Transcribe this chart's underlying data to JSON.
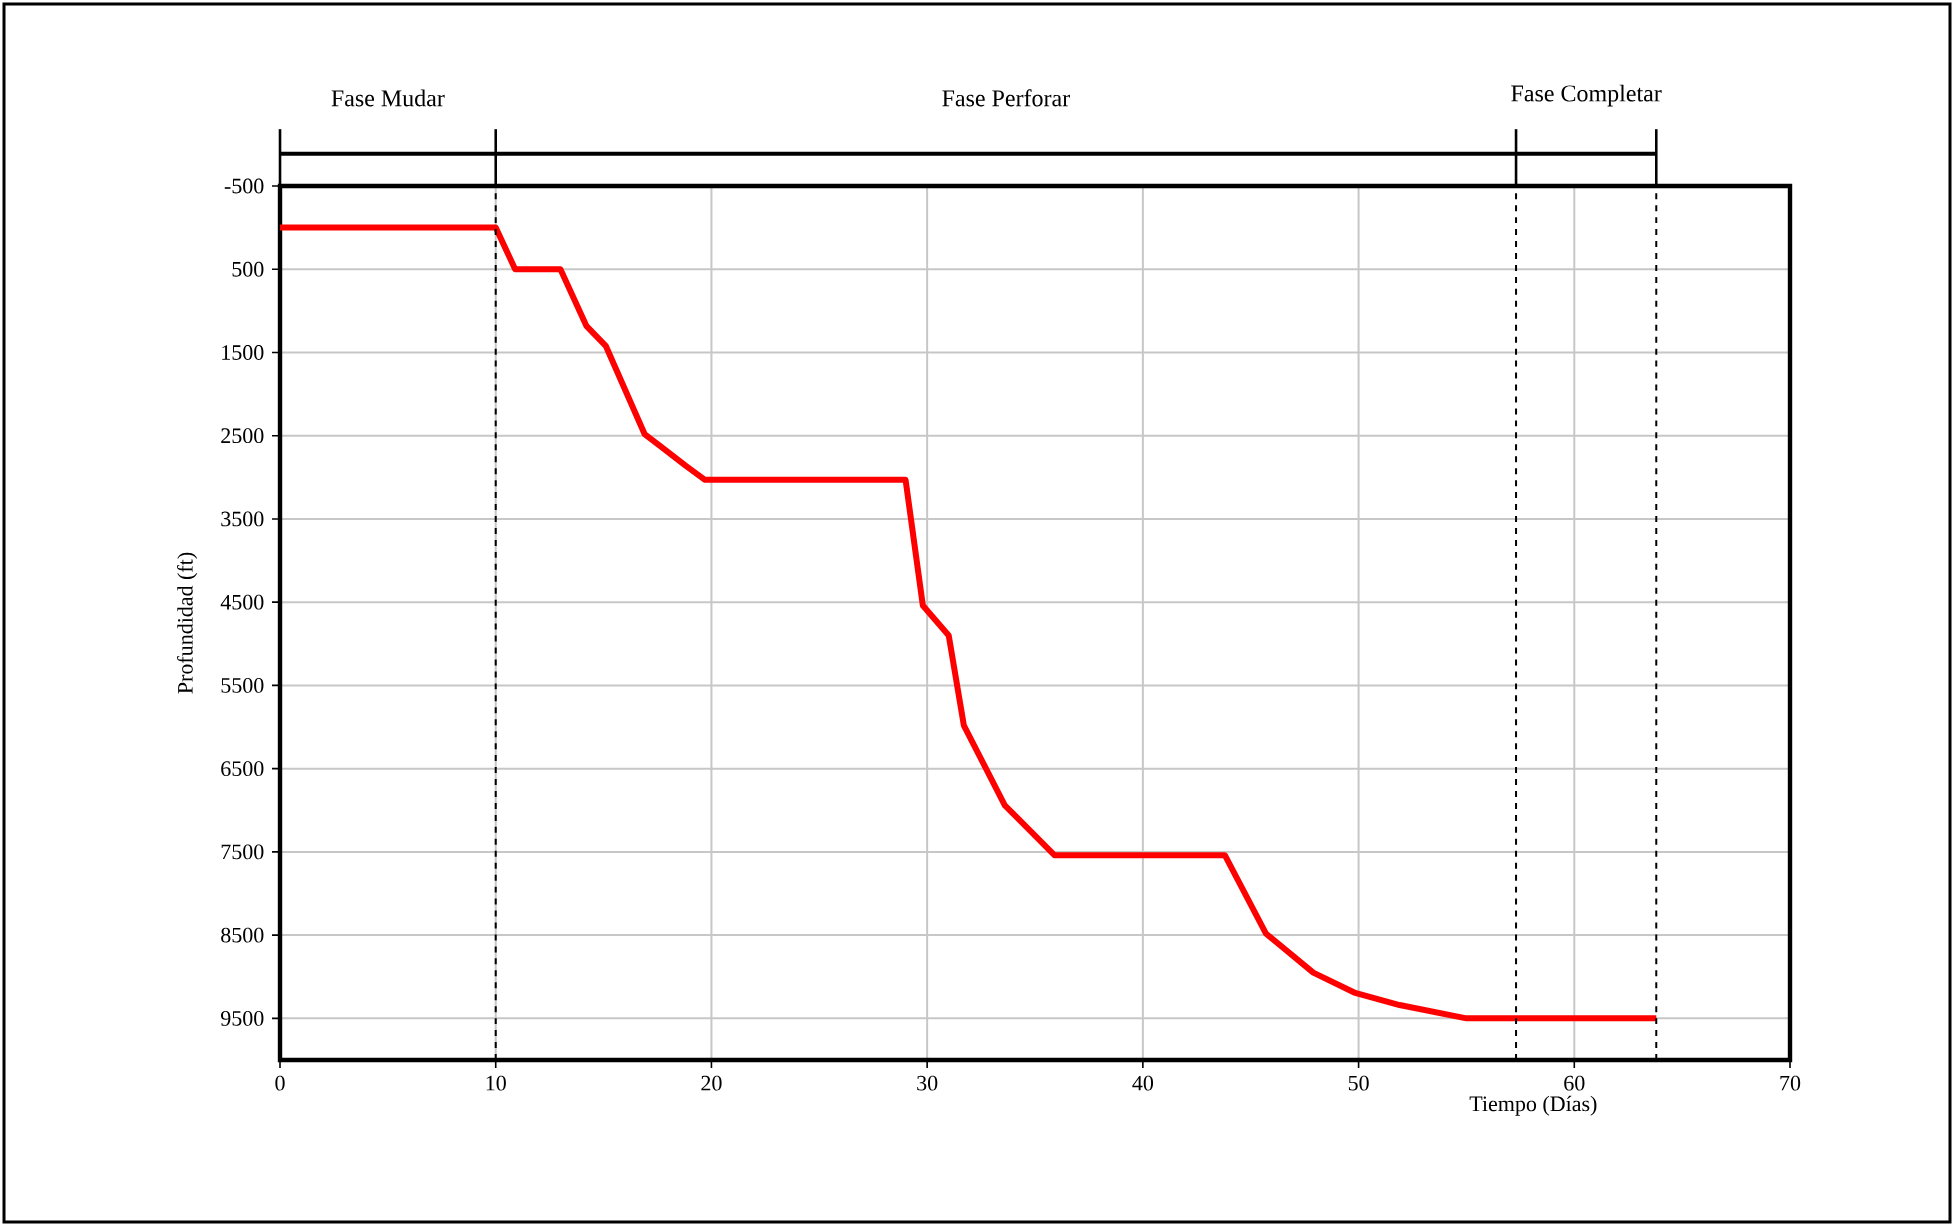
{
  "chart_data": {
    "type": "line",
    "xlabel": "Tiempo (Días)",
    "ylabel": "Profundidad (ft)",
    "x": [
      0,
      10,
      10.9,
      13,
      14.2,
      15.1,
      16.9,
      17.6,
      18.8,
      19.7,
      29,
      29.8,
      31,
      31.7,
      33.6,
      35.9,
      43.8,
      45.7,
      47.9,
      49.8,
      51.9,
      55,
      63.8
    ],
    "series": [
      {
        "color": "#ff0000",
        "values": [
          0,
          0,
          500,
          500,
          1180,
          1420,
          2480,
          2620,
          2860,
          3030,
          3030,
          4540,
          4900,
          5980,
          6940,
          7540,
          7540,
          8480,
          8950,
          9190,
          9340,
          9500,
          9500
        ]
      }
    ],
    "xlim": [
      0,
      70
    ],
    "ylim": [
      10000,
      -500
    ],
    "xticks": [
      0,
      10,
      20,
      30,
      40,
      50,
      60,
      70
    ],
    "yticks": [
      -500,
      500,
      1500,
      2500,
      3500,
      4500,
      5500,
      6500,
      7500,
      8500,
      9500
    ],
    "grid": true,
    "marker": "none",
    "line_style": "solid",
    "ref_lines": [
      {
        "axis": "x",
        "value": 10,
        "line_style": "dashed"
      },
      {
        "axis": "x",
        "value": 57.3,
        "line_style": "dashed"
      },
      {
        "axis": "x",
        "value": 63.8,
        "line_style": "dashed"
      }
    ],
    "annotations": [
      "Fase Mudar",
      "Fase Perforar",
      "Fase Completar"
    ]
  }
}
